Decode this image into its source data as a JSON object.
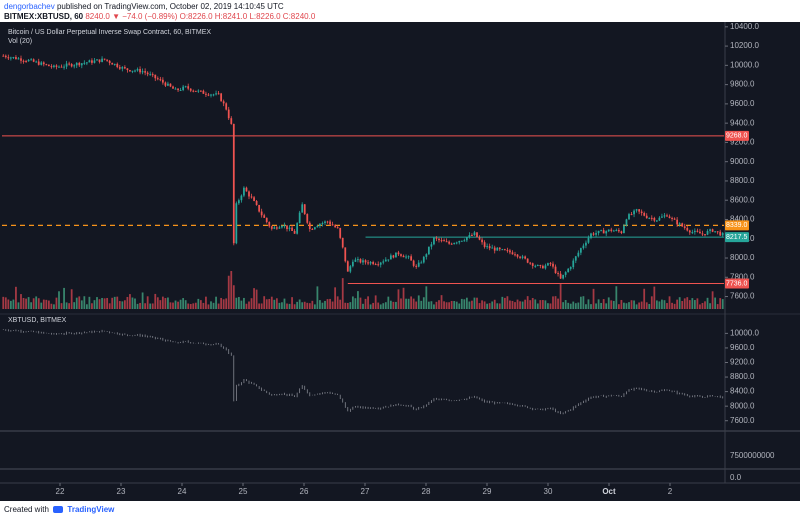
{
  "header": {
    "author": "dengorbachev",
    "published_text": "published on TradingView.com, October 02, 2019 14:10:45 UTC",
    "symbol": "BITMEX:XBTUSD, 60",
    "price": "8240.0",
    "change": "−74.0 (−0.89%)",
    "ohlc": "O:8226.0 H:8241.0 L:8226.0 C:8240.0"
  },
  "footer": {
    "created_with": "Created with",
    "brand": "TradingView"
  },
  "colors": {
    "up": "#26a69a",
    "down": "#ef5350",
    "vol_up": "#3f9a7a",
    "vol_down": "#c0404a",
    "bg": "#131722",
    "text": "#b2b5be",
    "resistance": "#ef5350",
    "dashed": "#f7931a",
    "support": "#26a69a"
  },
  "chart_data": [
    {
      "type": "candlestick",
      "title": "Bitcoin / US Dollar Perpetual Inverse Swap Contract, 60, BITMEX",
      "volume_label": "Vol (20)",
      "interval": "60",
      "x_tick_labels": [
        "22",
        "23",
        "24",
        "25",
        "26",
        "27",
        "28",
        "29",
        "30",
        "Oct",
        "2"
      ],
      "ylim": [
        7450,
        10450
      ],
      "y_ticks": [
        7600,
        7800,
        8000,
        8200,
        8400,
        8600,
        8800,
        9000,
        9200,
        9400,
        9600,
        9800,
        10000,
        10200,
        10400
      ],
      "y_tick_labels": [
        "7600.0",
        "7800.0",
        "8000.0",
        "8200.0",
        "8400.0",
        "8600.0",
        "8800.0",
        "9000.0",
        "9200.0",
        "9400.0",
        "9600.0",
        "9800.0",
        "10000.0",
        "10200.0",
        "10400.0"
      ],
      "price_path": [
        [
          0,
          10100
        ],
        [
          10,
          10050
        ],
        [
          20,
          9980
        ],
        [
          30,
          10020
        ],
        [
          40,
          10060
        ],
        [
          48,
          9960
        ],
        [
          55,
          9940
        ],
        [
          62,
          9840
        ],
        [
          68,
          9740
        ],
        [
          72,
          9770
        ],
        [
          78,
          9720
        ],
        [
          85,
          9690
        ],
        [
          88,
          9550
        ],
        [
          90,
          9380
        ],
        [
          91,
          8150
        ],
        [
          92,
          8550
        ],
        [
          95,
          8720
        ],
        [
          98,
          8620
        ],
        [
          102,
          8450
        ],
        [
          106,
          8300
        ],
        [
          110,
          8350
        ],
        [
          115,
          8260
        ],
        [
          118,
          8550
        ],
        [
          121,
          8300
        ],
        [
          124,
          8350
        ],
        [
          128,
          8380
        ],
        [
          132,
          8300
        ],
        [
          134,
          8100
        ],
        [
          136,
          7850
        ],
        [
          138,
          7980
        ],
        [
          142,
          7960
        ],
        [
          148,
          7950
        ],
        [
          152,
          8000
        ],
        [
          156,
          8050
        ],
        [
          160,
          8000
        ],
        [
          163,
          7900
        ],
        [
          166,
          8000
        ],
        [
          170,
          8200
        ],
        [
          176,
          8150
        ],
        [
          182,
          8200
        ],
        [
          186,
          8250
        ],
        [
          190,
          8120
        ],
        [
          196,
          8080
        ],
        [
          202,
          8050
        ],
        [
          208,
          7950
        ],
        [
          212,
          7900
        ],
        [
          216,
          7940
        ],
        [
          220,
          7780
        ],
        [
          224,
          7920
        ],
        [
          228,
          8100
        ],
        [
          232,
          8250
        ],
        [
          236,
          8270
        ],
        [
          240,
          8290
        ],
        [
          244,
          8270
        ],
        [
          246,
          8420
        ],
        [
          250,
          8490
        ],
        [
          254,
          8430
        ],
        [
          258,
          8400
        ],
        [
          262,
          8450
        ],
        [
          264,
          8400
        ],
        [
          268,
          8330
        ],
        [
          272,
          8270
        ],
        [
          276,
          8250
        ],
        [
          280,
          8290
        ],
        [
          284,
          8240
        ]
      ],
      "volume_spikes": {
        "89": 2.8,
        "90": 3.2,
        "134": 2.6,
        "220": 2.1,
        "91": 2.0
      },
      "price_labels": [
        {
          "value": 9268,
          "text": "9268.0",
          "style": "resistance"
        },
        {
          "value": 8339,
          "text": "8339.0",
          "style": "dashed"
        },
        {
          "value": 8217.5,
          "text": "8217.5",
          "style": "support"
        },
        {
          "value": 7736,
          "text": "7736.0",
          "style": "resistance"
        }
      ],
      "support_line": {
        "value": 8217.5,
        "from_x": 143
      },
      "level_736": {
        "value": 7736,
        "from_x": 136
      }
    },
    {
      "type": "line",
      "title": "XBTUSD, BITMEX",
      "ylim": [
        7400,
        10450
      ],
      "y_ticks": [
        7600,
        8000,
        8400,
        8800,
        9200,
        9600,
        10000
      ],
      "y_tick_labels": [
        "7600.0",
        "8000.0",
        "8400.0",
        "8800.0",
        "9200.0",
        "9600.0",
        "10000.0"
      ]
    },
    {
      "type": "axis",
      "y_tick_labels": [
        "7500000000",
        "0.0"
      ]
    }
  ]
}
